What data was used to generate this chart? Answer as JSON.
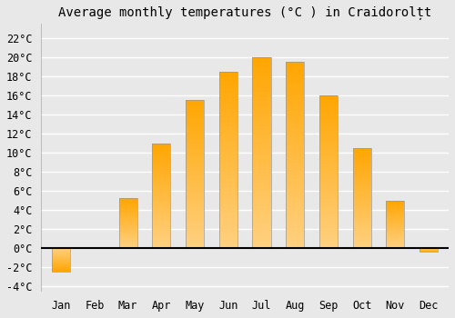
{
  "months": [
    "Jan",
    "Feb",
    "Mar",
    "Apr",
    "May",
    "Jun",
    "Jul",
    "Aug",
    "Sep",
    "Oct",
    "Nov",
    "Dec"
  ],
  "values": [
    -2.5,
    0.0,
    5.2,
    11.0,
    15.5,
    18.5,
    20.0,
    19.5,
    16.0,
    10.5,
    5.0,
    -0.4
  ],
  "bar_color_top": "#FFA500",
  "bar_color_bottom": "#FFD080",
  "bar_edge_color": "#999999",
  "title": "Average monthly temperatures (°C ) in Craidorolțt",
  "ylabel_ticks": [
    "-4°C",
    "-2°C",
    "0°C",
    "2°C",
    "4°C",
    "6°C",
    "8°C",
    "10°C",
    "12°C",
    "14°C",
    "16°C",
    "18°C",
    "20°C",
    "22°C"
  ],
  "ytick_values": [
    -4,
    -2,
    0,
    2,
    4,
    6,
    8,
    10,
    12,
    14,
    16,
    18,
    20,
    22
  ],
  "ylim": [
    -4.5,
    23.5
  ],
  "background_color": "#e8e8e8",
  "plot_background": "#e8e8e8",
  "grid_color": "#ffffff",
  "title_fontsize": 10,
  "tick_fontsize": 8.5,
  "zero_line_color": "#000000",
  "bar_width": 0.55
}
